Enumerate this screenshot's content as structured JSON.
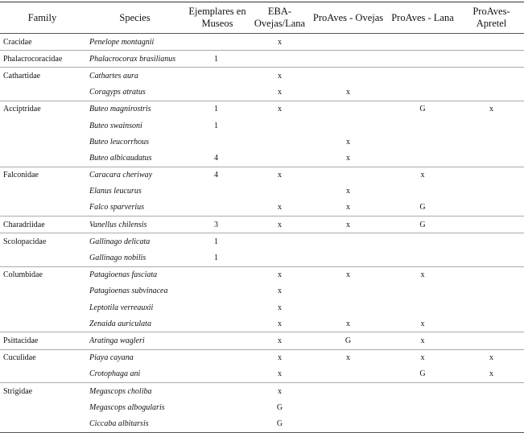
{
  "table": {
    "header": [
      "Family",
      "Species",
      "Ejemplares en Museos",
      "EBA-Ovejas/Lana",
      "ProAves - Ovejas",
      "ProAves - Lana",
      "ProAves-Apretel"
    ],
    "families": [
      {
        "name": "Cracidae",
        "species": [
          {
            "name": "Penelope montagnii",
            "eba": "x"
          }
        ]
      },
      {
        "name": "Phalacrocoracidae",
        "species": [
          {
            "name": "Phalacrocorax brasilianus",
            "museos": 1
          }
        ]
      },
      {
        "name": "Cathartidae",
        "species": [
          {
            "name": "Cathartes aura",
            "eba": "x"
          },
          {
            "name": "Coragyps atratus",
            "eba": "x",
            "ovejas": "x"
          }
        ]
      },
      {
        "name": "Acciptridae",
        "species": [
          {
            "name": "Buteo magnirostris",
            "museos": 1,
            "eba": "x",
            "lana": "G",
            "apretel": "x"
          },
          {
            "name": "Buteo swainsoni",
            "museos": 1
          },
          {
            "name": "Buteo leucorrhous",
            "ovejas": "x"
          },
          {
            "name": "Buteo albicaudatus",
            "museos": 4,
            "ovejas": "x"
          }
        ]
      },
      {
        "name": "Falconidae",
        "species": [
          {
            "name": "Caracara cheriway",
            "museos": 4,
            "eba": "x",
            "lana": "x"
          },
          {
            "name": "Elanus leucurus",
            "ovejas": "x"
          },
          {
            "name": "Falco sparverius",
            "eba": "x",
            "ovejas": "x",
            "lana": "G"
          }
        ]
      },
      {
        "name": "Charadriidae",
        "species": [
          {
            "name": "Vanellus chilensis",
            "museos": 3,
            "eba": "x",
            "ovejas": "x",
            "lana": "G"
          }
        ]
      },
      {
        "name": "Scolopacidae",
        "species": [
          {
            "name": "Gallinago delicata",
            "museos": 1
          },
          {
            "name": "Gallinago nobilis",
            "museos": 1
          }
        ]
      },
      {
        "name": "Columbidae",
        "species": [
          {
            "name": "Patagioenas fasciata",
            "eba": "x",
            "ovejas": "x",
            "lana": "x"
          },
          {
            "name": "Patagioenas subvinacea",
            "eba": "x"
          },
          {
            "name": "Leptotila verreauxii",
            "eba": "x"
          },
          {
            "name": "Zenaida auriculata",
            "eba": "x",
            "ovejas": "x",
            "lana": "x"
          }
        ]
      },
      {
        "name": "Psittacidae",
        "species": [
          {
            "name": "Aratinga wagleri",
            "eba": "x",
            "ovejas": "G",
            "lana": "x"
          }
        ]
      },
      {
        "name": "Cuculidae",
        "species": [
          {
            "name": "Piaya cayana",
            "eba": "x",
            "ovejas": "x",
            "lana": "x",
            "apretel": "x"
          },
          {
            "name": "Crotophaga ani",
            "eba": "x",
            "lana": "G",
            "apretel": "x"
          }
        ]
      },
      {
        "name": "Strigidae",
        "species": [
          {
            "name": "Megascops choliba",
            "eba": "x"
          },
          {
            "name": "Megascops albogularis",
            "eba": "G"
          },
          {
            "name": "Ciccaba albitarsis",
            "eba": "G"
          }
        ]
      }
    ]
  }
}
